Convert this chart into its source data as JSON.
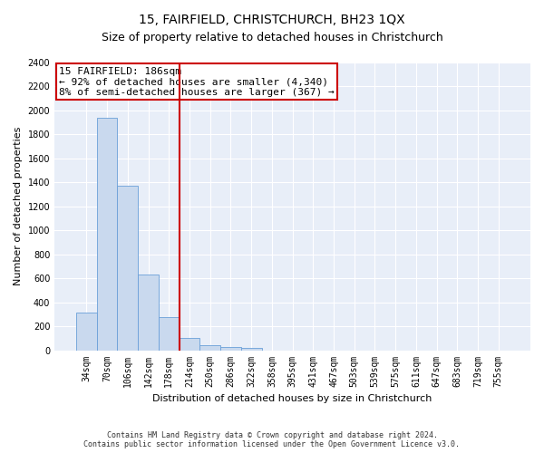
{
  "title": "15, FAIRFIELD, CHRISTCHURCH, BH23 1QX",
  "subtitle": "Size of property relative to detached houses in Christchurch",
  "xlabel": "Distribution of detached houses by size in Christchurch",
  "ylabel": "Number of detached properties",
  "categories": [
    "34sqm",
    "70sqm",
    "106sqm",
    "142sqm",
    "178sqm",
    "214sqm",
    "250sqm",
    "286sqm",
    "322sqm",
    "358sqm",
    "395sqm",
    "431sqm",
    "467sqm",
    "503sqm",
    "539sqm",
    "575sqm",
    "611sqm",
    "647sqm",
    "683sqm",
    "719sqm",
    "755sqm"
  ],
  "values": [
    315,
    1940,
    1370,
    630,
    275,
    100,
    42,
    28,
    20,
    0,
    0,
    0,
    0,
    0,
    0,
    0,
    0,
    0,
    0,
    0,
    0
  ],
  "bar_color": "#c9d9ee",
  "bar_edge_color": "#6a9fd8",
  "vline_color": "#cc0000",
  "annotation_line1": "15 FAIRFIELD: 186sqm",
  "annotation_line2": "← 92% of detached houses are smaller (4,340)",
  "annotation_line3": "8% of semi-detached houses are larger (367) →",
  "annotation_box_color": "#ffffff",
  "annotation_box_edge_color": "#cc0000",
  "ylim": [
    0,
    2400
  ],
  "yticks": [
    0,
    200,
    400,
    600,
    800,
    1000,
    1200,
    1400,
    1600,
    1800,
    2000,
    2200,
    2400
  ],
  "plot_bg_color": "#e8eef8",
  "grid_color": "#ffffff",
  "footer_line1": "Contains HM Land Registry data © Crown copyright and database right 2024.",
  "footer_line2": "Contains public sector information licensed under the Open Government Licence v3.0.",
  "title_fontsize": 10,
  "subtitle_fontsize": 9,
  "axis_label_fontsize": 8,
  "tick_fontsize": 7,
  "bar_width": 1.0
}
